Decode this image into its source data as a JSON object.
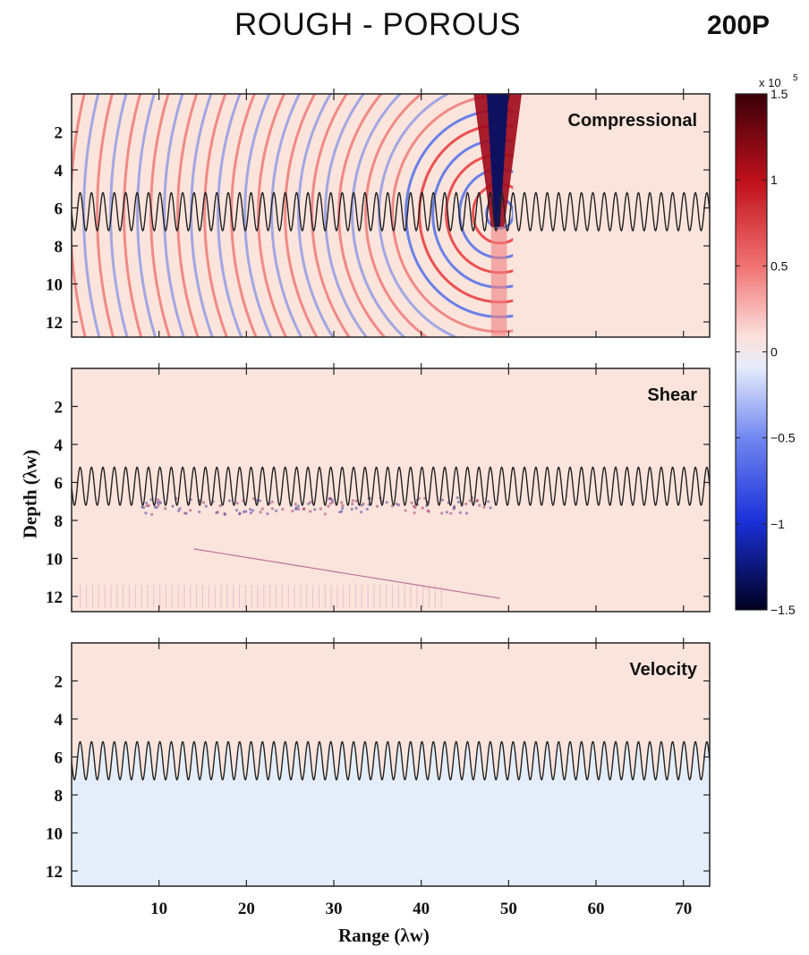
{
  "header": {
    "title": "ROUGH - POROUS",
    "tag": "200P"
  },
  "axes": {
    "ylabel": "Depth (λw)",
    "xlabel": "Range (λw)"
  },
  "colorbar": {
    "exponent_label": "x 10",
    "exponent": "5",
    "ticks": [
      "1.5",
      "1",
      "0.5",
      "0",
      "−0.5",
      "−1",
      "−1.5"
    ],
    "colors": {
      "max": "#3a0008",
      "pos": "#e8222a",
      "zero": "#ffffff",
      "neg": "#1a33e0",
      "min": "#00001e"
    }
  },
  "panels": [
    {
      "label": "Compressional",
      "background": "#fbe4dc"
    },
    {
      "label": "Shear",
      "background": "#fbe4dc"
    },
    {
      "label": "Velocity",
      "background": "#fbe4dc",
      "lower_background": "#e4eefb"
    }
  ],
  "chart_data": {
    "type": "heatmap",
    "title": "ROUGH - POROUS",
    "xlabel": "Range (λw)",
    "ylabel": "Depth (λw)",
    "xlim": [
      0,
      73
    ],
    "ylim": [
      12.8,
      0
    ],
    "xticks": [
      10,
      20,
      30,
      40,
      50,
      60,
      70
    ],
    "yticks": [
      2,
      4,
      6,
      8,
      10,
      12
    ],
    "colorbar_range": [
      -1.5,
      1.5
    ],
    "colorbar_scale": "x 10^5",
    "interface": {
      "mean_depth": 6.2,
      "amplitude": 1.0,
      "periods": 56
    },
    "panels": [
      "Compressional",
      "Shear",
      "Velocity"
    ],
    "wavefront_range": 49,
    "legend": "right"
  }
}
